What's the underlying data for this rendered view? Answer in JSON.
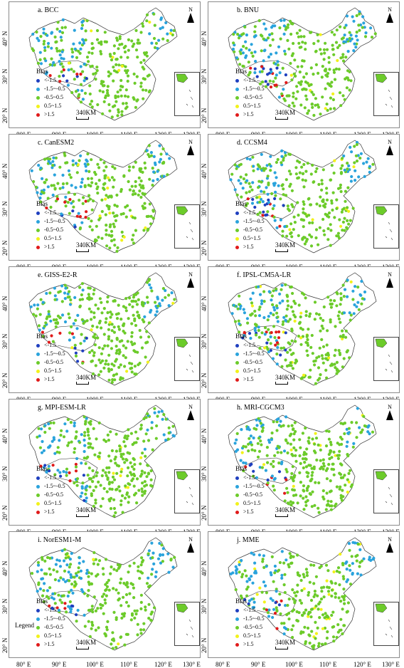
{
  "figure": {
    "lat_labels": [
      "40° N",
      "30° N",
      "20° N"
    ],
    "lon_labels": [
      "80° E",
      "90° E",
      "100° E",
      "110° E",
      "120° E",
      "130° E"
    ],
    "north_label": "N",
    "scale_label": "340KM",
    "legend_title": "Bias",
    "legend_items": [
      {
        "label": "<-1.5",
        "color": "#1f3fbf"
      },
      {
        "label": "-1.5~-0.5",
        "color": "#2aa3dc"
      },
      {
        "label": "-0.5~0.5",
        "color": "#6ccb2a"
      },
      {
        "label": "0.5~1.5",
        "color": "#f2f21a"
      },
      {
        "label": ">1.5",
        "color": "#e01a1a"
      }
    ],
    "extra_legend_label": "Legend"
  },
  "panels": [
    {
      "title": "a.  BCC"
    },
    {
      "title": "b.  BNU"
    },
    {
      "title": "c.  CanESM2"
    },
    {
      "title": "d.  CCSM4"
    },
    {
      "title": "e.  GISS-E2-R"
    },
    {
      "title": "f.  IPSL-CM5A-LR"
    },
    {
      "title": "g.  MPI-ESM-LR"
    },
    {
      "title": "h.  MRI-CGCM3"
    },
    {
      "title": "i.  NorESM1-M"
    },
    {
      "title": "j.  MME"
    }
  ]
}
